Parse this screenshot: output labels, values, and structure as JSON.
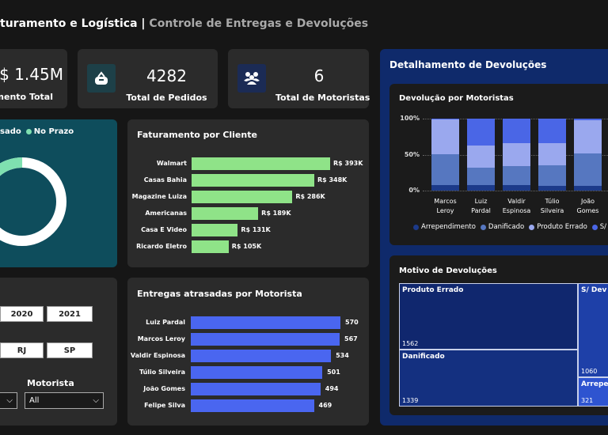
{
  "header": {
    "title": "turamento e Logística",
    "separator": "|",
    "subtitle": "Controle de Entregas e Devoluções"
  },
  "kpis": [
    {
      "value": "$ 1.45M",
      "label": "amento Total"
    },
    {
      "value": "4282",
      "label": "Total de Pedidos",
      "icon": "shopping-basket-icon"
    },
    {
      "value": "6",
      "label": "Total de Motoristas",
      "icon": "users-icon"
    }
  ],
  "donut": {
    "legend": [
      {
        "label": "sado",
        "color": "#ffffff"
      },
      {
        "label": "No Prazo",
        "color": "#7fe0b0"
      }
    ],
    "no_prazo_fraction": 0.12,
    "bg": "#0e4d5c"
  },
  "faturamento": {
    "title": "Faturamento por Cliente",
    "color": "#8fe388",
    "categories": [
      "Walmart",
      "Casas Bahia",
      "Magazine Luiza",
      "Americanas",
      "Casa E Video",
      "Ricardo Eletro"
    ],
    "values": [
      393,
      348,
      286,
      189,
      131,
      105
    ],
    "labels": [
      "R$ 393K",
      "R$ 348K",
      "R$ 286K",
      "R$ 189K",
      "R$ 131K",
      "R$ 105K"
    ]
  },
  "filters": {
    "years": [
      "2020",
      "2021"
    ],
    "states": [
      "RJ",
      "SP"
    ],
    "motorista_label": "Motorista",
    "motorista_value": "All"
  },
  "entregas": {
    "title": "Entregas atrasadas por Motorista",
    "color": "#4a66f0",
    "categories": [
      "Luiz Pardal",
      "Marcos Leroy",
      "Valdir Espinosa",
      "Túlio Silveira",
      "João Gomes",
      "Felipe Silva"
    ],
    "values": [
      570,
      567,
      534,
      501,
      494,
      469
    ]
  },
  "devolucoes": {
    "title": "Detalhamento de Devoluções",
    "chart": {
      "title": "Devolução por Motoristas",
      "yticks": [
        "100%",
        "50%",
        "0%"
      ],
      "categories": [
        [
          "Marcos",
          "Leroy"
        ],
        [
          "Luiz",
          "Pardal"
        ],
        [
          "Valdir",
          "Espinosa"
        ],
        [
          "Túlio",
          "Silveira"
        ],
        [
          "João",
          "Gomes"
        ]
      ],
      "series": [
        {
          "name": "Arrependimento",
          "color": "#1c3a8a",
          "values": [
            8,
            8,
            8,
            7,
            7
          ]
        },
        {
          "name": "Danificado",
          "color": "#5677c0",
          "values": [
            43,
            24,
            26,
            28,
            45
          ]
        },
        {
          "name": "Produto Errado",
          "color": "#9aa8ee",
          "values": [
            48,
            31,
            32,
            31,
            46
          ]
        },
        {
          "name": "S/",
          "color": "#4a66e6",
          "values": [
            1,
            37,
            34,
            34,
            2
          ]
        }
      ]
    },
    "treemap": {
      "title": "Motivo de Devoluções",
      "items": [
        {
          "label": "Produto Errado",
          "value": "1562"
        },
        {
          "label": "Danificado",
          "value": "1339"
        },
        {
          "label": "S/ Dev",
          "value": "1060"
        },
        {
          "label": "Arrepe",
          "value": "321"
        }
      ]
    }
  }
}
